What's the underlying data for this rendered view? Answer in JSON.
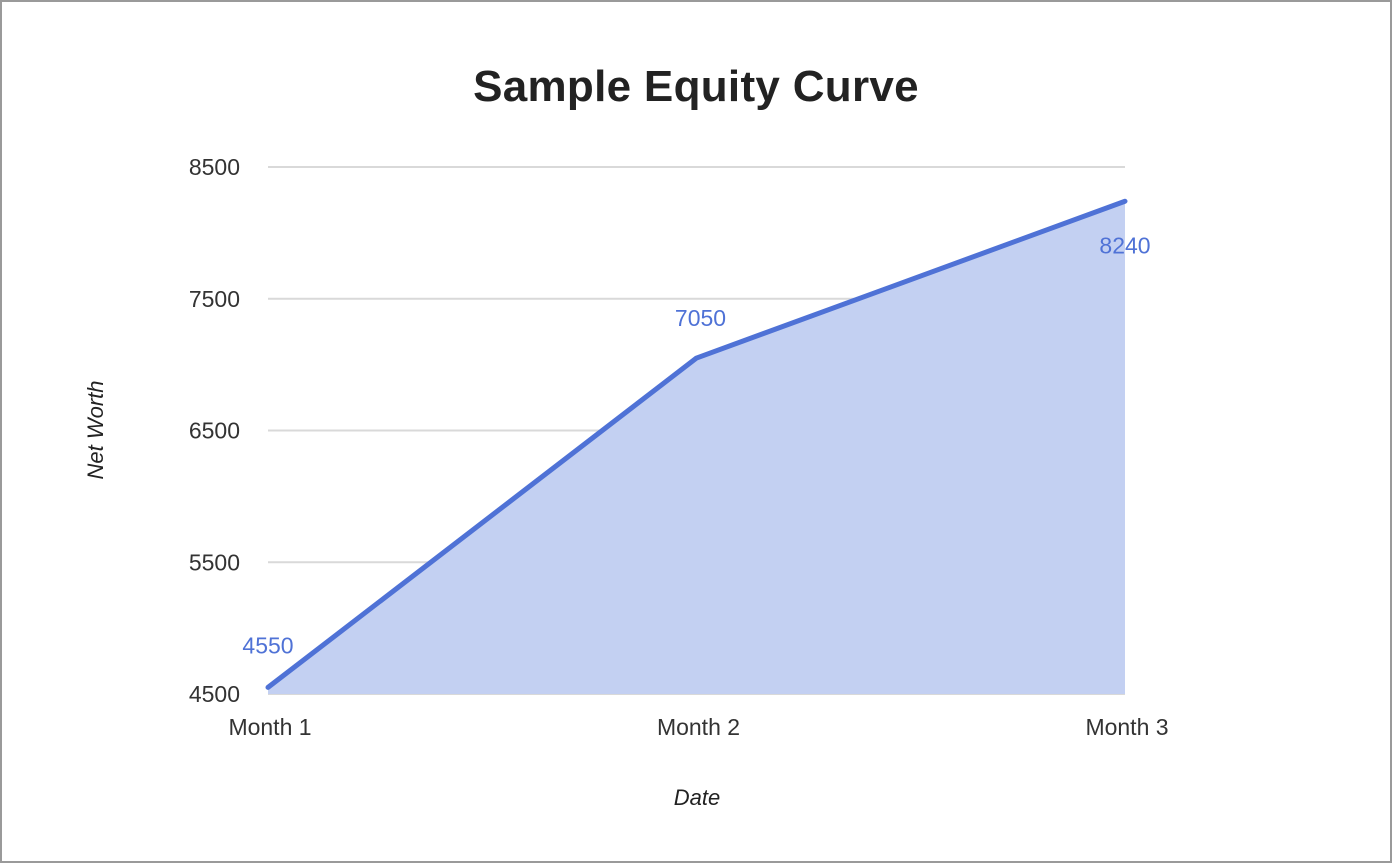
{
  "chart_data": {
    "type": "area",
    "title": "Sample Equity Curve",
    "xlabel": "Date",
    "ylabel": "Net Worth",
    "categories": [
      "Month 1",
      "Month 2",
      "Month 3"
    ],
    "series": [
      {
        "values": [
          4550,
          7050,
          8240
        ],
        "data_labels": [
          "4550",
          "7050",
          "8240"
        ]
      }
    ],
    "ylim": [
      4500,
      8500
    ],
    "yticks": [
      4500,
      5500,
      6500,
      7500,
      8500
    ],
    "ytick_labels": [
      "4500",
      "5500",
      "6500",
      "7500",
      "8500"
    ],
    "grid": true,
    "legend": "none",
    "colors": {
      "line": "#4f72d6",
      "fill": "#c3d0f2",
      "grid": "#d9d9d9",
      "label": "#4f72d6"
    }
  }
}
